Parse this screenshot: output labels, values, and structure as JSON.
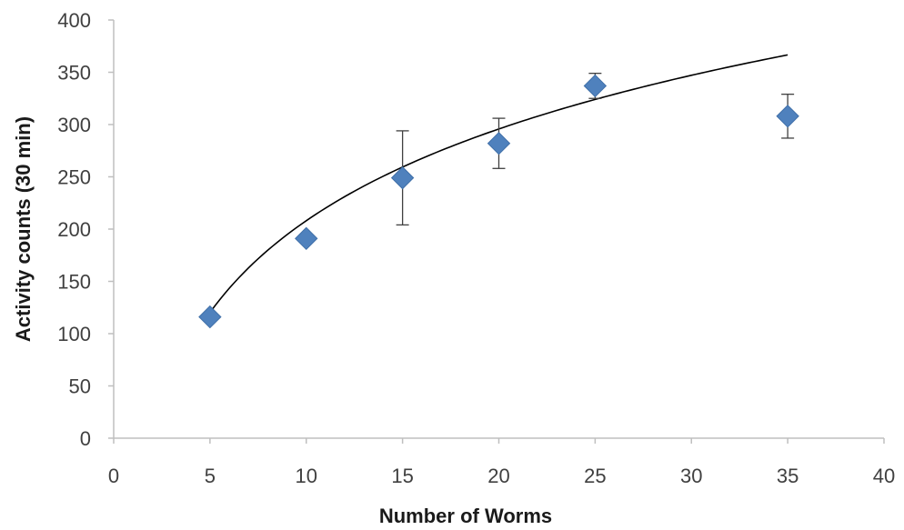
{
  "chart_data": {
    "type": "scatter",
    "title": "",
    "xlabel": "Number of Worms",
    "ylabel": "Activity counts (30 min)",
    "xlim": [
      0,
      40
    ],
    "ylim": [
      0,
      400
    ],
    "x_ticks": [
      "0",
      "5",
      "10",
      "15",
      "20",
      "25",
      "30",
      "35",
      "40"
    ],
    "y_ticks": [
      "0",
      "50",
      "100",
      "150",
      "200",
      "250",
      "300",
      "350",
      "400"
    ],
    "grid": false,
    "legend": "none",
    "series": [
      {
        "points": [
          {
            "x": 5,
            "y": 116,
            "err": 0
          },
          {
            "x": 10,
            "y": 191,
            "err": 0
          },
          {
            "x": 15,
            "y": 249,
            "err": 45
          },
          {
            "x": 20,
            "y": 282,
            "err": 24
          },
          {
            "x": 25,
            "y": 337,
            "err": 12
          },
          {
            "x": 35,
            "y": 308,
            "err": 21
          }
        ]
      }
    ],
    "trendline": {
      "type": "logarithmic",
      "a": 126.6,
      "b": -83.5,
      "x_range": [
        5,
        35
      ]
    },
    "colors": {
      "marker": "#4f81bd",
      "trendline": "#000000",
      "axis": "#bfbfbf",
      "error_bar": "#404040"
    }
  }
}
